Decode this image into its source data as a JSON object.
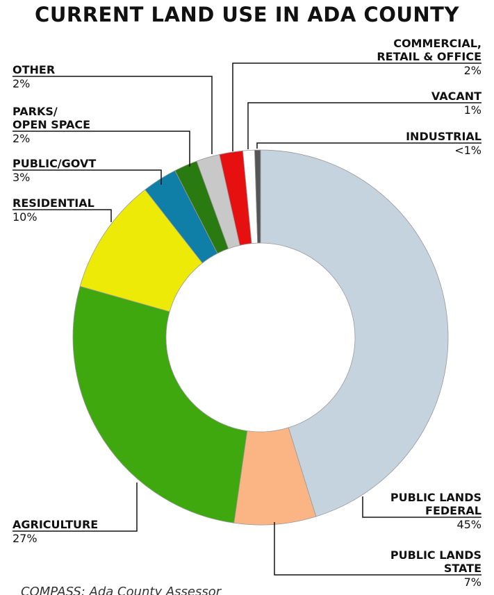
{
  "chart_data": {
    "type": "donut",
    "title": "CURRENT LAND USE IN ADA COUNTY",
    "categories": [
      "PUBLIC LANDS\nFEDERAL",
      "PUBLIC LANDS\nSTATE",
      "AGRICULTURE",
      "RESIDENTIAL",
      "PUBLIC/GOVT",
      "PARKS/\nOPEN SPACE",
      "OTHER",
      "COMMERCIAL,\nRETAIL & OFFICE",
      "VACANT",
      "INDUSTRIAL"
    ],
    "values": [
      45,
      7,
      27,
      10,
      3,
      2,
      2,
      2,
      1,
      0.5
    ],
    "value_labels": [
      "45%",
      "7%",
      "27%",
      "10%",
      "3%",
      "2%",
      "2%",
      "2%",
      "1%",
      "<1%"
    ],
    "colors": [
      "#c5d3df",
      "#fbb584",
      "#3ea80e",
      "#eeea08",
      "#0f7fa8",
      "#2a7a12",
      "#c8c8c8",
      "#e61010",
      "#ffffff",
      "#555555"
    ],
    "source": "COMPASS: Ada County Assessor"
  }
}
